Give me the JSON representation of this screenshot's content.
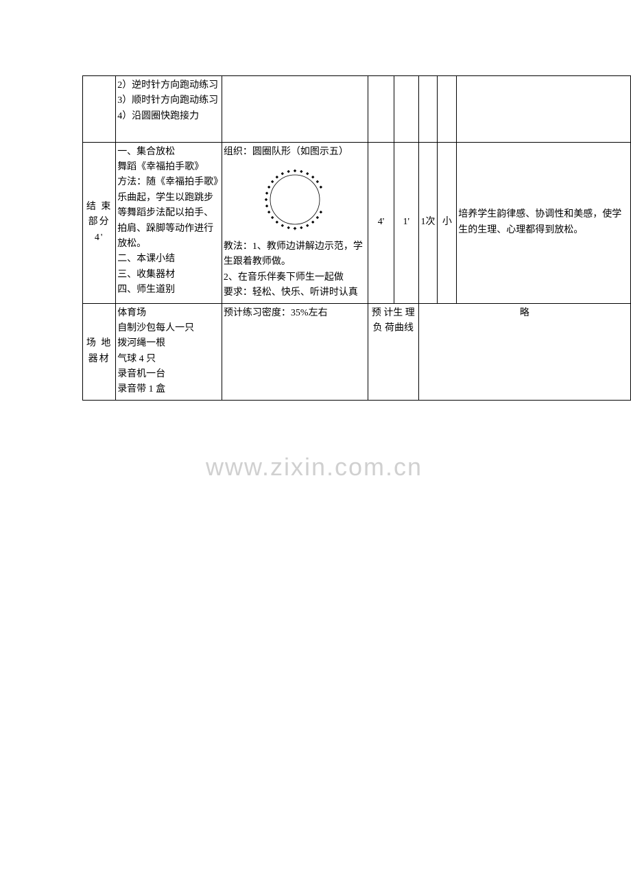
{
  "watermark": "www.zixin.com.cn",
  "row1": {
    "content": "2）逆时针方向跑动练习\n3）顺时针方向跑动练习\n4）沿圆圈快跑接力"
  },
  "row2": {
    "section_label": "结 束部分\n4'",
    "content": "一、集合放松\n舞蹈《幸福拍手歌》\n方法：随《幸福拍手歌》乐曲起，学生以跑跳步等舞蹈步法配以拍手、拍肩、跺脚等动作进行放松。\n二、本课小结\n三、收集器材\n四、师生道别",
    "method_top": "组织：圆圈队形（如图示五）",
    "method_bottom": "教法：1、教师边讲解边示范，学生跟着教师做。\n2、在音乐伴奏下师生一起做\n要求：轻松、快乐、听讲时认真",
    "time1": "4'",
    "time2": "1'",
    "times": "1次",
    "intensity": "小",
    "result": "培养学生韵律感、协调性和美感，使学生的生理、心理都得到放松。"
  },
  "row3": {
    "section_label": "场 地器材",
    "content": "体育场\n自制沙包每人一只\n拨河绳一根\n气球 4 只\n录音机一台\n录音带 1 盒",
    "density": "预计练习密度：35%左右",
    "curve_label": "预 计生 理负 荷曲线",
    "curve_value": "略"
  },
  "diagram": {
    "dot_color": "#000000",
    "circle_radius": 42,
    "dot_count": 28,
    "gap_start_deg": 75,
    "gap_end_deg": 105,
    "center_marker": "+"
  },
  "styles": {
    "font_size": 14,
    "border_color": "#000000",
    "background": "#ffffff",
    "watermark_color": "#d0d0d0"
  }
}
